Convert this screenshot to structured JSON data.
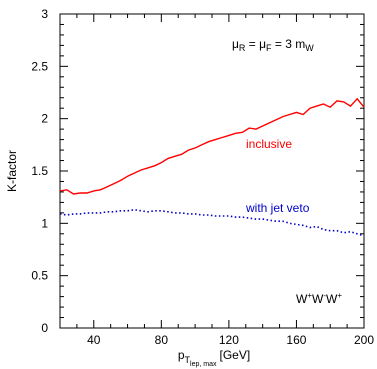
{
  "chart_data": {
    "type": "line",
    "title": "",
    "xlabel": "[GeV]",
    "xlabel_symbol": "p",
    "xlabel_subscript": "T",
    "xlabel_subsubscript": "lep, max",
    "ylabel": "K-factor",
    "xlim": [
      20,
      200
    ],
    "ylim": [
      0,
      3
    ],
    "x_ticks": [
      40,
      80,
      120,
      160,
      200
    ],
    "x_tick_labels": [
      "40",
      "80",
      "120",
      "160",
      "200"
    ],
    "y_ticks": [
      0,
      0.5,
      1,
      1.5,
      2,
      2.5,
      3
    ],
    "y_tick_labels": [
      "0",
      "0.5",
      "1",
      "1.5",
      "2",
      "2.5",
      "3"
    ],
    "grid": false,
    "scale_annotation": {
      "mu": "μ",
      "r_sub": "R",
      "eq1": " = ",
      "f_sub": "F",
      "eq2": " = 3 m",
      "w_sub": "W"
    },
    "process_annotation": {
      "w1": "W",
      "s1": "+",
      "w2": "W",
      "s2": "-",
      "w3": "W",
      "s3": "+"
    },
    "series": [
      {
        "name": "inclusive",
        "color": "#ff0000",
        "line_style": "solid",
        "x": [
          20,
          24,
          28,
          32,
          36,
          40,
          44,
          48,
          52,
          56,
          60,
          64,
          68,
          72,
          76,
          80,
          84,
          88,
          92,
          96,
          100,
          104,
          108,
          112,
          116,
          120,
          124,
          128,
          132,
          136,
          140,
          144,
          148,
          152,
          156,
          160,
          164,
          168,
          172,
          176,
          180,
          184,
          188,
          192,
          196,
          200
        ],
        "y": [
          1.31,
          1.32,
          1.28,
          1.29,
          1.29,
          1.31,
          1.32,
          1.35,
          1.38,
          1.41,
          1.45,
          1.48,
          1.51,
          1.53,
          1.55,
          1.58,
          1.62,
          1.64,
          1.66,
          1.7,
          1.72,
          1.75,
          1.78,
          1.8,
          1.82,
          1.84,
          1.86,
          1.87,
          1.91,
          1.9,
          1.93,
          1.96,
          1.99,
          2.02,
          2.04,
          2.06,
          2.04,
          2.1,
          2.12,
          2.14,
          2.11,
          2.17,
          2.16,
          2.12,
          2.19,
          2.11
        ]
      },
      {
        "name": "with jet veto",
        "color": "#0000cc",
        "line_style": "dotted",
        "x": [
          20,
          24,
          28,
          32,
          36,
          40,
          44,
          48,
          52,
          56,
          60,
          64,
          68,
          72,
          76,
          80,
          84,
          88,
          92,
          96,
          100,
          104,
          108,
          112,
          116,
          120,
          124,
          128,
          132,
          136,
          140,
          144,
          148,
          152,
          156,
          160,
          164,
          168,
          172,
          176,
          180,
          184,
          188,
          192,
          196,
          200
        ],
        "y": [
          1.09,
          1.08,
          1.09,
          1.09,
          1.1,
          1.1,
          1.1,
          1.11,
          1.11,
          1.12,
          1.12,
          1.13,
          1.12,
          1.11,
          1.12,
          1.12,
          1.11,
          1.1,
          1.1,
          1.09,
          1.09,
          1.08,
          1.08,
          1.07,
          1.07,
          1.07,
          1.06,
          1.06,
          1.05,
          1.04,
          1.04,
          1.03,
          1.02,
          1.02,
          1.0,
          0.99,
          0.98,
          0.96,
          0.97,
          0.94,
          0.93,
          0.93,
          0.91,
          0.92,
          0.9,
          0.88
        ]
      }
    ]
  }
}
